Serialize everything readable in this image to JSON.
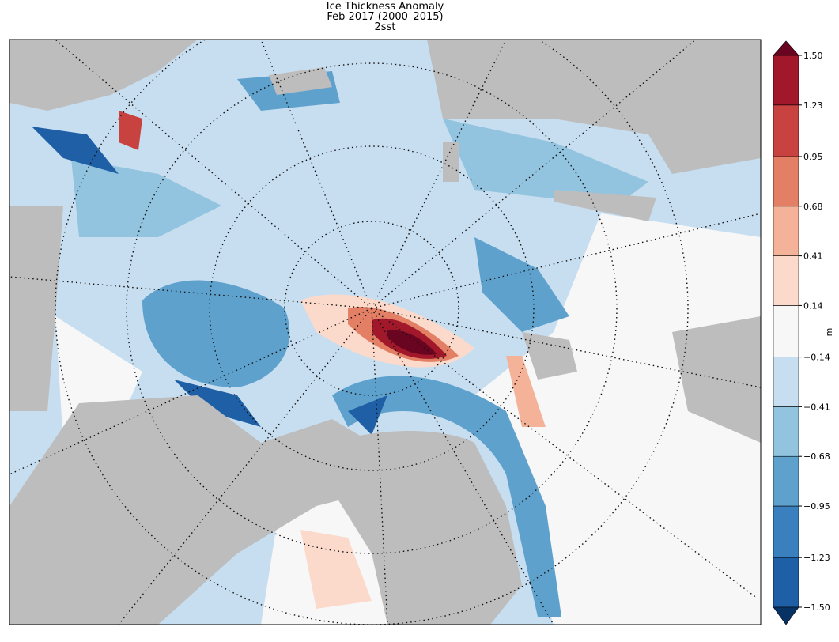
{
  "title": "Ice Thickness Anomaly",
  "subtitle": "Feb 2017 (2000–2015)",
  "run": "2sst",
  "colorbar": {
    "label": "m",
    "ticks": [
      {
        "value": -1.5,
        "label": "−1.50"
      },
      {
        "value": -1.23,
        "label": "−1.23"
      },
      {
        "value": -0.95,
        "label": "−0.95"
      },
      {
        "value": -0.68,
        "label": "−0.68"
      },
      {
        "value": -0.41,
        "label": "−0.41"
      },
      {
        "value": -0.14,
        "label": "−0.14"
      },
      0.14,
      0.41,
      0.68,
      0.95,
      1.23,
      {
        "value": 1.5,
        "label": "1.50"
      }
    ],
    "colors": [
      "#1f5fa6",
      "#3a80bf",
      "#5fa1cd",
      "#92c3df",
      "#c7def0",
      "#f7f7f7",
      "#fcdacb",
      "#f4b298",
      "#e27f65",
      "#c8423f",
      "#a1182b"
    ],
    "under_color": "#083264",
    "over_color": "#690521"
  }
}
